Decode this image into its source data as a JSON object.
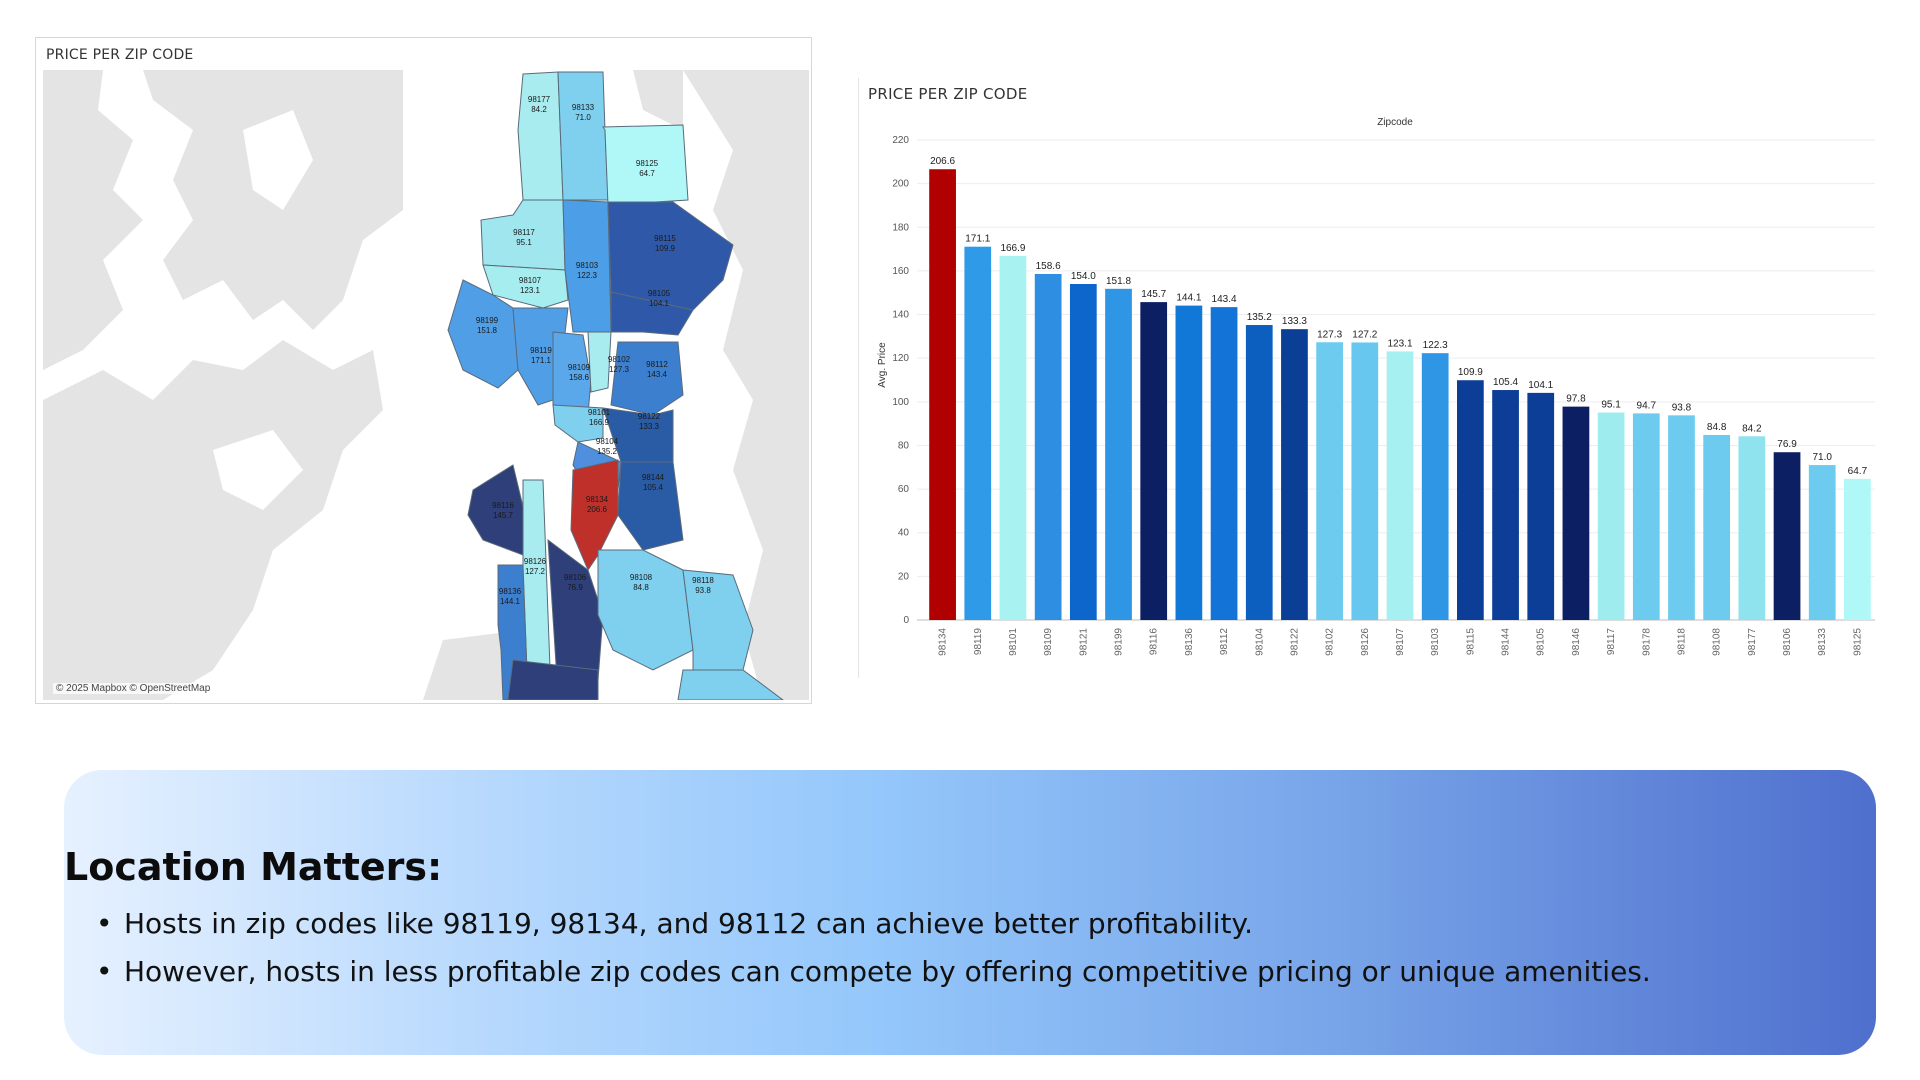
{
  "map": {
    "title": "PRICE PER ZIP CODE",
    "credit": "© 2025 Mapbox © OpenStreetMap",
    "regions": [
      {
        "zip": "98177",
        "price": "84.2"
      },
      {
        "zip": "98133",
        "price": "71.0"
      },
      {
        "zip": "98125",
        "price": "64.7"
      },
      {
        "zip": "98117",
        "price": "95.1"
      },
      {
        "zip": "98103",
        "price": "122.3"
      },
      {
        "zip": "98115",
        "price": "109.9"
      },
      {
        "zip": "98107",
        "price": "123.1"
      },
      {
        "zip": "98105",
        "price": "104.1"
      },
      {
        "zip": "98199",
        "price": "151.8"
      },
      {
        "zip": "98119",
        "price": "171.1"
      },
      {
        "zip": "98109",
        "price": "158.6"
      },
      {
        "zip": "98102",
        "price": "127.3"
      },
      {
        "zip": "98112",
        "price": "143.4"
      },
      {
        "zip": "98101",
        "price": "166.9"
      },
      {
        "zip": "98122",
        "price": "133.3"
      },
      {
        "zip": "98104",
        "price": "135.2"
      },
      {
        "zip": "98134",
        "price": "206.6"
      },
      {
        "zip": "98144",
        "price": "105.4"
      },
      {
        "zip": "98116",
        "price": "145.7"
      },
      {
        "zip": "98126",
        "price": "127.2"
      },
      {
        "zip": "98106",
        "price": "76.9"
      },
      {
        "zip": "98108",
        "price": "84.8"
      },
      {
        "zip": "98118",
        "price": "93.8"
      },
      {
        "zip": "98136",
        "price": "144.1"
      }
    ]
  },
  "chart": {
    "title": "PRICE PER ZIP CODE",
    "header": "Zipcode",
    "ylabel": "Avg. Price"
  },
  "chart_data": {
    "type": "bar",
    "title": "PRICE PER ZIP CODE",
    "xlabel": "Zipcode",
    "ylabel": "Avg. Price",
    "ylim": [
      0,
      220
    ],
    "yticks": [
      0,
      20,
      40,
      60,
      80,
      100,
      120,
      140,
      160,
      180,
      200,
      220
    ],
    "grid": true,
    "categories": [
      "98134",
      "98119",
      "98101",
      "98109",
      "98121",
      "98199",
      "98116",
      "98136",
      "98112",
      "98104",
      "98122",
      "98102",
      "98126",
      "98107",
      "98103",
      "98115",
      "98144",
      "98105",
      "98146",
      "98117",
      "98178",
      "98118",
      "98108",
      "98177",
      "98106",
      "98133",
      "98125"
    ],
    "values": [
      206.6,
      171.1,
      166.9,
      158.6,
      154.0,
      151.8,
      145.7,
      144.1,
      143.4,
      135.2,
      133.3,
      127.3,
      127.2,
      123.1,
      122.3,
      109.9,
      105.4,
      104.1,
      97.8,
      95.1,
      94.7,
      93.8,
      84.8,
      84.2,
      76.9,
      71.0,
      64.7
    ],
    "colors": [
      "#b00000",
      "#2f9be8",
      "#a8f2f2",
      "#2d8ee2",
      "#0c66cc",
      "#2f96e6",
      "#0d1f63",
      "#1278d8",
      "#1473d6",
      "#0c5fbf",
      "#0b3f95",
      "#6ccbef",
      "#67c7ee",
      "#a6f0f1",
      "#2f96e6",
      "#0d3e97",
      "#0d3e97",
      "#0d3e97",
      "#0d1f63",
      "#9fecef",
      "#6ccbef",
      "#6ccbef",
      "#6ccbef",
      "#8fe3ee",
      "#0d1f63",
      "#6ccbef",
      "#b0f7f7"
    ]
  },
  "info": {
    "heading": "Location Matters:",
    "bullets": [
      "Hosts in zip codes like 98119, 98134, and 98112 can achieve better profitability.",
      "However, hosts in less profitable zip codes can compete by offering competitive pricing or unique amenities."
    ]
  }
}
